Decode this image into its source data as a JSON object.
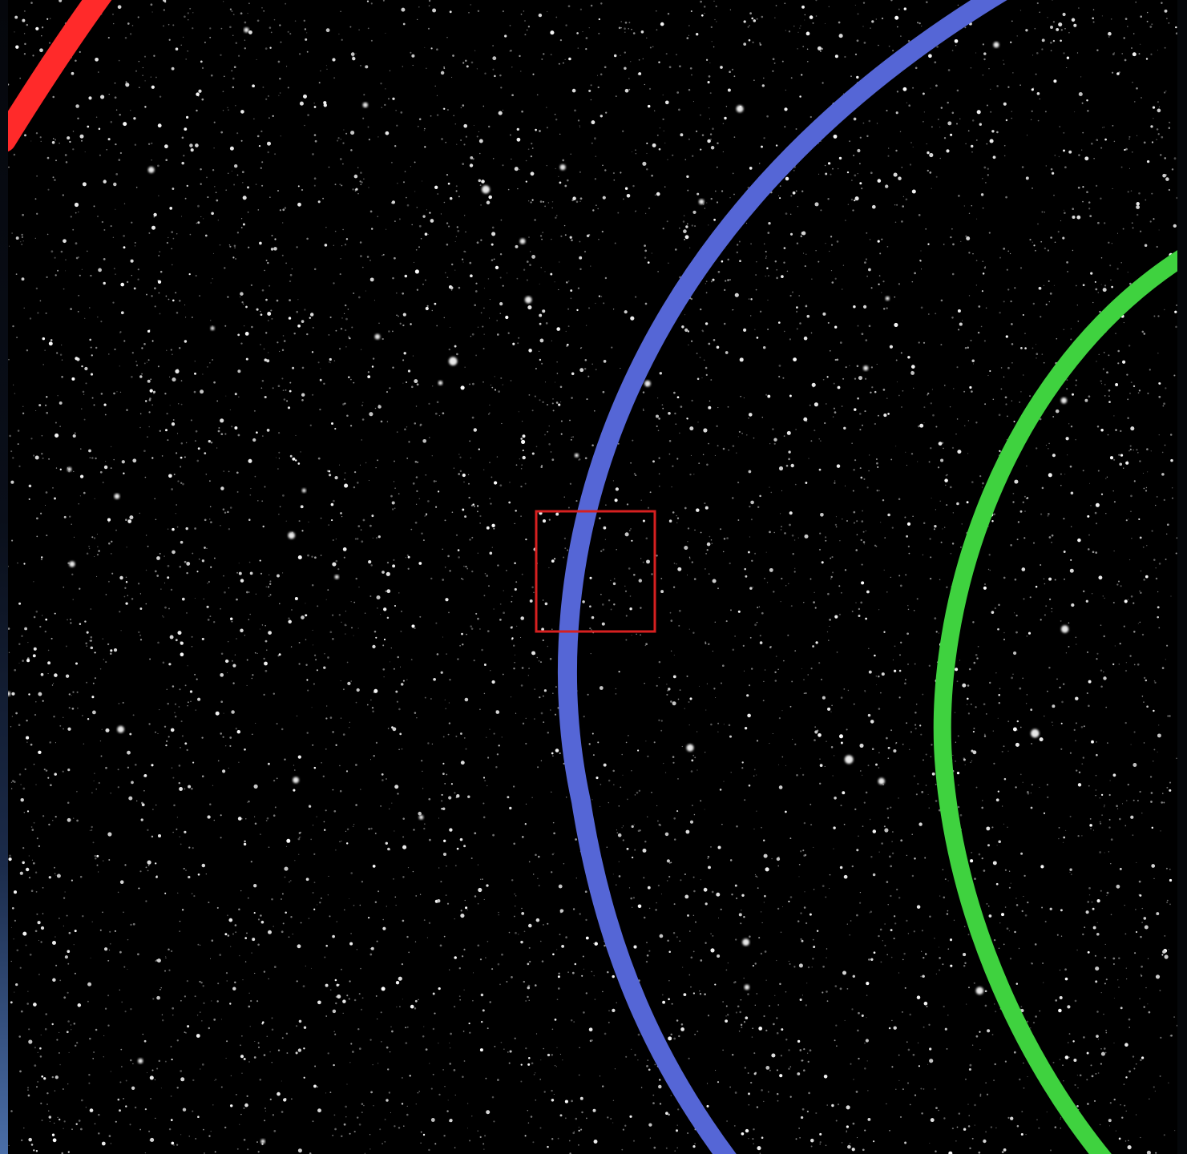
{
  "scene": {
    "background_color": "#000000",
    "description_tags": [
      "star-field",
      "orbit-arcs",
      "selection-box"
    ]
  },
  "arcs": [
    {
      "name": "red-arc",
      "color": "#ff2a2a"
    },
    {
      "name": "blue-arc",
      "color": "#5566d6"
    },
    {
      "name": "green-arc",
      "color": "#3fd23f"
    }
  ],
  "selection_box": {
    "color": "#d62020"
  }
}
